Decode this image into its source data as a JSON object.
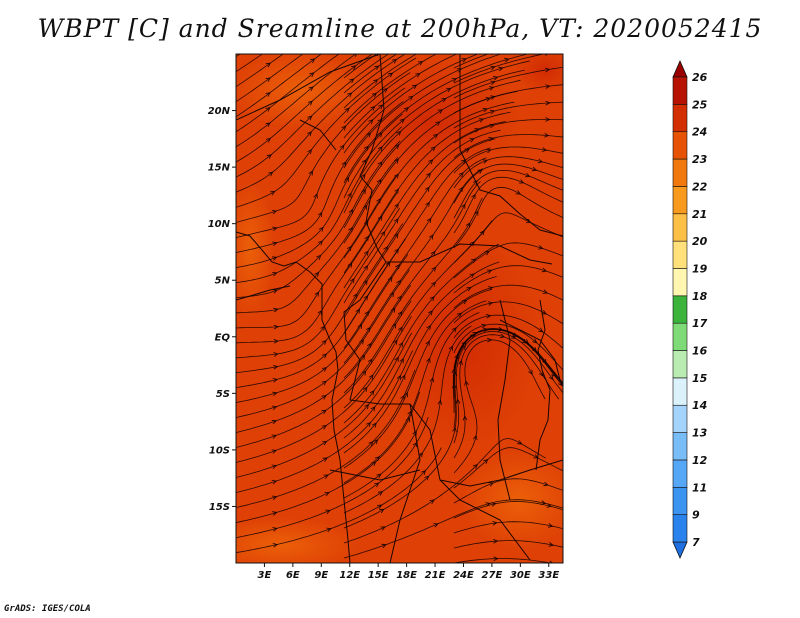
{
  "title": "WBPT [C] and Sreamline at 200hPa, VT: 2020052415",
  "footer": "GrADS: IGES/COLA",
  "map": {
    "lat_labels": [
      "20N",
      "15N",
      "10N",
      "5N",
      "EQ",
      "5S",
      "10S",
      "15S"
    ],
    "lat_values": [
      20,
      15,
      10,
      5,
      0,
      -5,
      -10,
      -15
    ],
    "lon_labels": [
      "3E",
      "6E",
      "9E",
      "12E",
      "15E",
      "18E",
      "21E",
      "24E",
      "27E",
      "30E",
      "33E"
    ],
    "lon_values": [
      3,
      6,
      9,
      12,
      15,
      18,
      21,
      24,
      27,
      30,
      33
    ],
    "lon_range": [
      0,
      34.5
    ],
    "lat_range": [
      -20,
      25
    ]
  },
  "colorbar": {
    "labels": [
      "7",
      "9",
      "11",
      "12",
      "13",
      "14",
      "15",
      "16",
      "17",
      "18",
      "19",
      "20",
      "21",
      "22",
      "23",
      "24",
      "25",
      "26"
    ],
    "colors": [
      "#1f6fe0",
      "#2a82ec",
      "#3b94f2",
      "#56a7f5",
      "#78bcf8",
      "#a4d3fb",
      "#dcf2fb",
      "#b8ecb0",
      "#7fda78",
      "#3cb43c",
      "#fff6b0",
      "#ffe07a",
      "#fdbf45",
      "#f89a1d",
      "#f0780c",
      "#e65306",
      "#d42f02",
      "#b81200",
      "#9a0000"
    ]
  }
}
